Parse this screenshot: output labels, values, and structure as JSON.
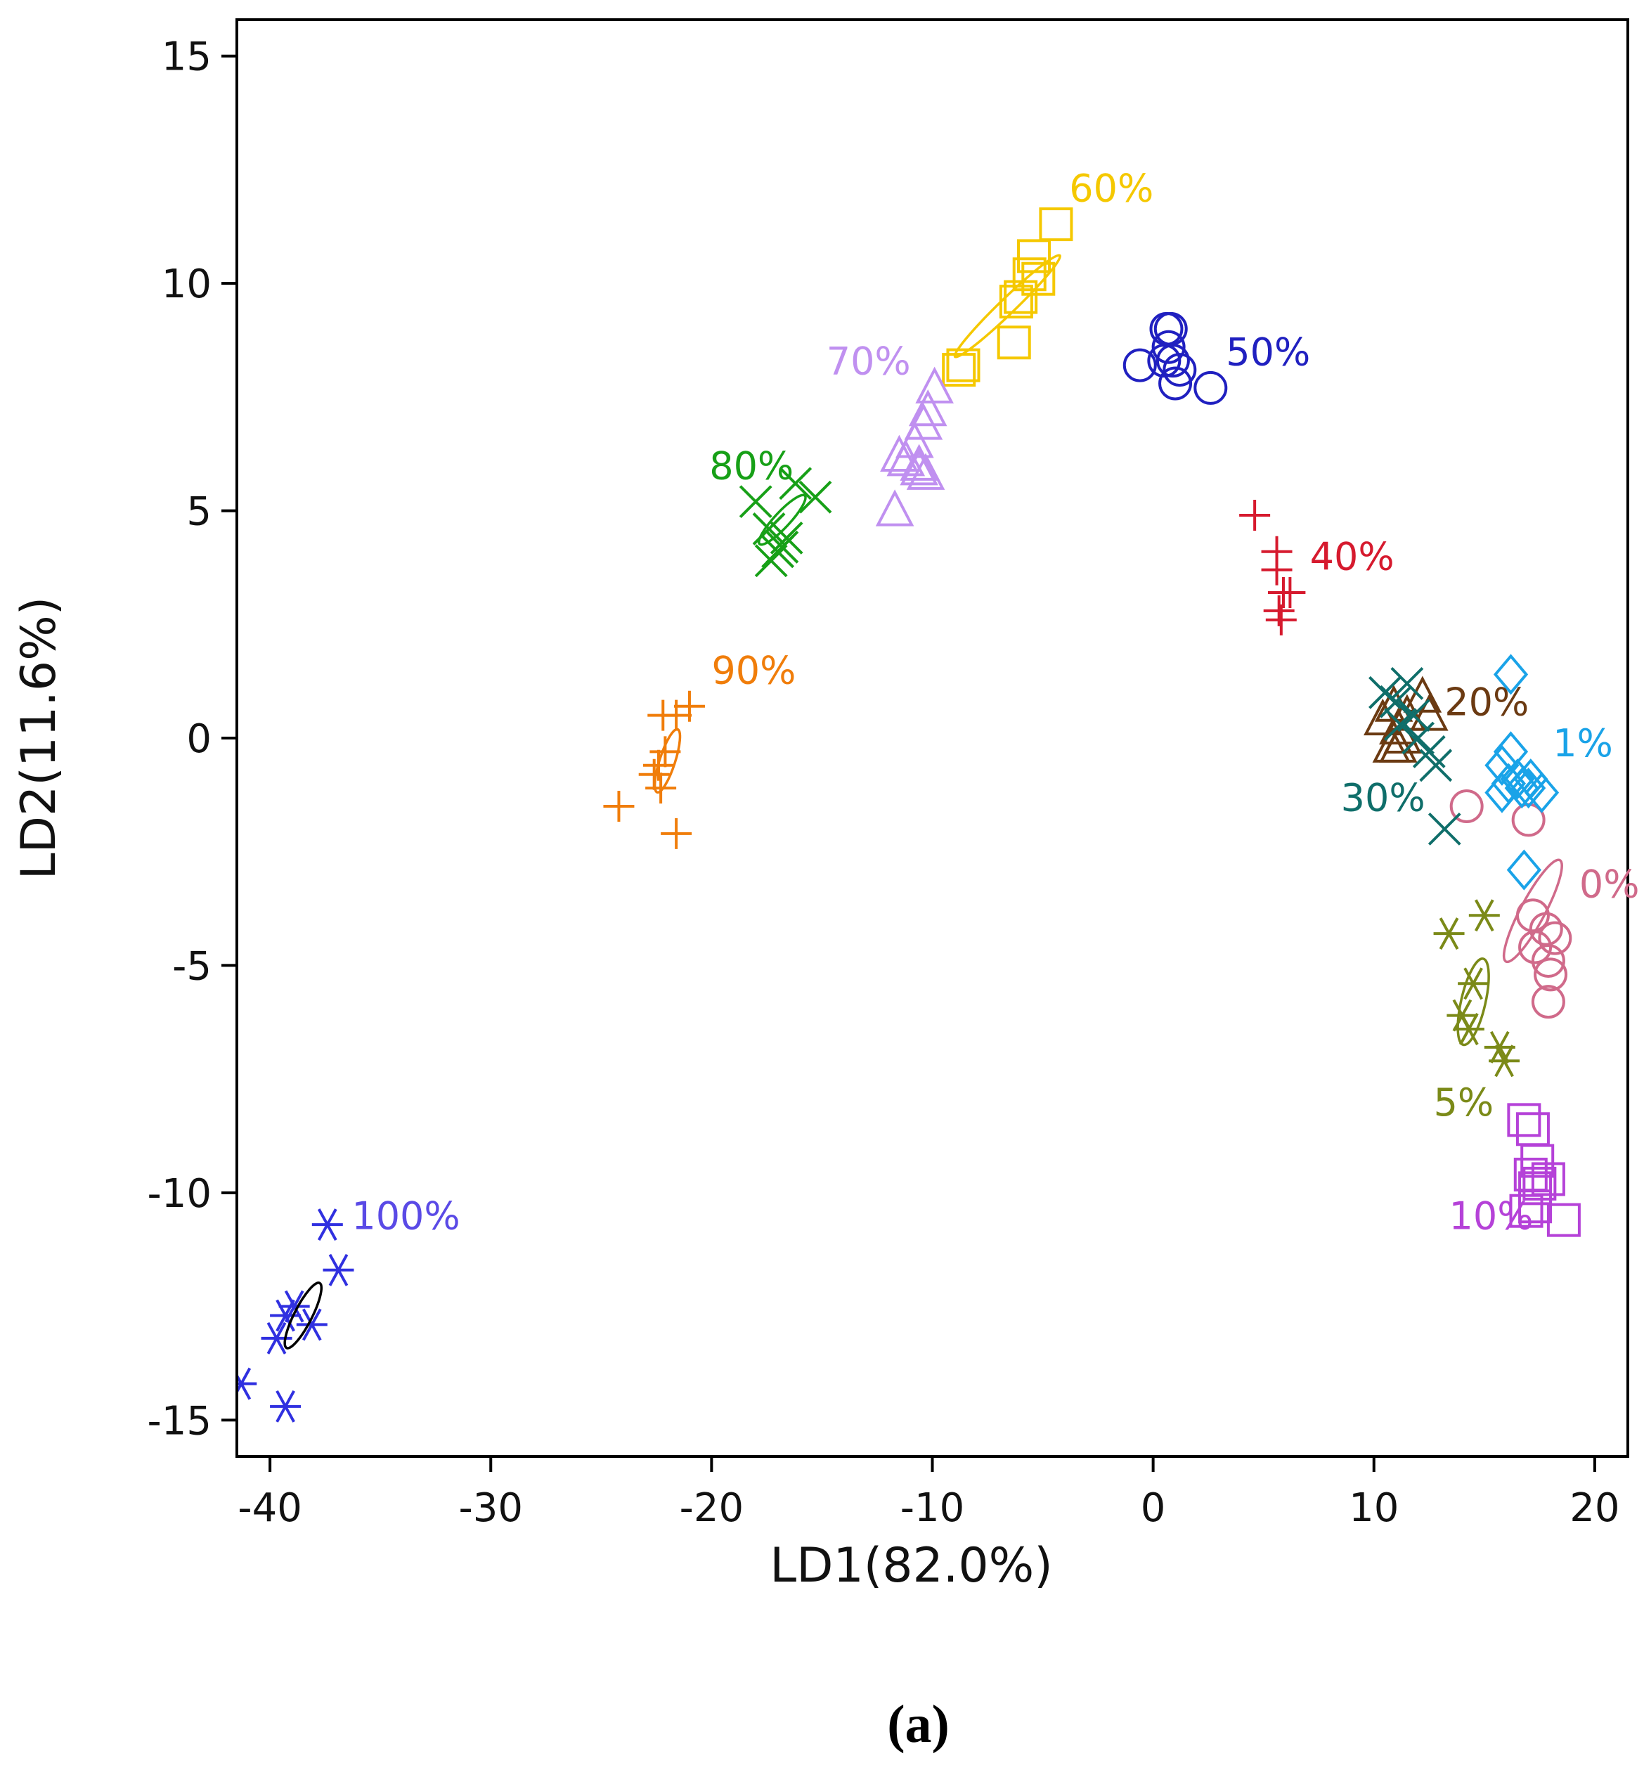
{
  "chart_data": {
    "type": "scatter",
    "title": "",
    "xlabel": "LD1(82.0%)",
    "ylabel": "LD2(11.6%)",
    "xlim": [
      -41.5,
      21.5
    ],
    "ylim": [
      -15.8,
      15.8
    ],
    "x_ticks": [
      -40,
      -30,
      -20,
      -10,
      0,
      10,
      20
    ],
    "y_ticks": [
      15,
      10,
      5,
      0,
      -5,
      -10,
      -15
    ],
    "x_tick_labels": [
      "-40",
      "-30",
      "-20",
      "-10",
      "0",
      "10",
      "20"
    ],
    "y_tick_labels": [
      "15",
      "10",
      "5",
      "0",
      "-5",
      "-10",
      "-15"
    ],
    "grid": false,
    "legend": "none",
    "panel_label": "(a)",
    "series": [
      {
        "name": "0%",
        "color": "#d06a8a",
        "marker": "circle",
        "label_pos": [
          19.3,
          -3.5
        ],
        "ellipse": {
          "cx": 17.2,
          "cy": -3.8,
          "rx": 2.6,
          "ry": 0.55,
          "angle_deg": 62
        },
        "points": [
          [
            14.2,
            -1.5
          ],
          [
            17.0,
            -1.8
          ],
          [
            17.2,
            -3.9
          ],
          [
            17.8,
            -4.2
          ],
          [
            18.2,
            -4.4
          ],
          [
            17.3,
            -4.6
          ],
          [
            17.9,
            -4.9
          ],
          [
            18.0,
            -5.2
          ],
          [
            17.9,
            -5.8
          ]
        ]
      },
      {
        "name": "1%",
        "color": "#1aa3e8",
        "marker": "diamond",
        "label_pos": [
          18.1,
          -0.4
        ],
        "points": [
          [
            16.2,
            1.4
          ],
          [
            16.2,
            -0.3
          ],
          [
            15.8,
            -0.6
          ],
          [
            16.5,
            -0.9
          ],
          [
            16.1,
            -1.0
          ],
          [
            15.8,
            -1.2
          ],
          [
            16.7,
            -1.1
          ],
          [
            17.1,
            -0.9
          ],
          [
            17.0,
            -1.1
          ],
          [
            17.6,
            -1.2
          ],
          [
            16.8,
            -2.9
          ]
        ]
      },
      {
        "name": "5%",
        "color": "#7b8a18",
        "marker": "asterisk",
        "label_pos": [
          12.7,
          -8.3
        ],
        "ellipse": {
          "cx": 14.5,
          "cy": -5.8,
          "rx": 2.0,
          "ry": 0.55,
          "angle_deg": 77
        },
        "points": [
          [
            13.4,
            -4.3
          ],
          [
            15.0,
            -3.9
          ],
          [
            14.5,
            -5.4
          ],
          [
            14.0,
            -6.1
          ],
          [
            14.3,
            -6.4
          ],
          [
            15.7,
            -6.8
          ],
          [
            15.9,
            -7.1
          ]
        ]
      },
      {
        "name": "10%",
        "color": "#b542d8",
        "marker": "square",
        "label_pos": [
          13.4,
          -10.8
        ],
        "points": [
          [
            16.8,
            -8.4
          ],
          [
            17.2,
            -8.6
          ],
          [
            17.4,
            -9.3
          ],
          [
            17.1,
            -9.6
          ],
          [
            17.5,
            -9.8
          ],
          [
            17.3,
            -9.9
          ],
          [
            17.9,
            -9.7
          ],
          [
            17.3,
            -10.3
          ],
          [
            16.9,
            -10.4
          ],
          [
            18.6,
            -10.6
          ]
        ]
      },
      {
        "name": "20%",
        "color": "#6b3a12",
        "marker": "triangle",
        "label_pos": [
          13.2,
          0.5
        ],
        "points": [
          [
            10.4,
            0.4
          ],
          [
            10.9,
            0.7
          ],
          [
            11.1,
            0.2
          ],
          [
            11.5,
            0.5
          ],
          [
            12.2,
            0.9
          ],
          [
            12.5,
            0.5
          ],
          [
            11.3,
            0.0
          ],
          [
            10.8,
            -0.2
          ],
          [
            11.1,
            -0.2
          ]
        ]
      },
      {
        "name": "30%",
        "color": "#0f6e6a",
        "marker": "x",
        "label_pos": [
          8.5,
          -1.6
        ],
        "points": [
          [
            10.5,
            1.0
          ],
          [
            11.5,
            1.2
          ],
          [
            11.0,
            0.8
          ],
          [
            11.8,
            0.5
          ],
          [
            11.2,
            0.3
          ],
          [
            12.0,
            0.0
          ],
          [
            12.5,
            -0.3
          ],
          [
            12.8,
            -0.6
          ],
          [
            13.2,
            -2.0
          ]
        ]
      },
      {
        "name": "40%",
        "color": "#d61a2e",
        "marker": "plus",
        "label_pos": [
          7.1,
          3.7
        ],
        "points": [
          [
            4.6,
            4.9
          ],
          [
            5.6,
            4.1
          ],
          [
            5.6,
            3.7
          ],
          [
            5.9,
            3.2
          ],
          [
            6.2,
            3.2
          ],
          [
            5.7,
            2.8
          ],
          [
            5.8,
            2.6
          ]
        ]
      },
      {
        "name": "50%",
        "color": "#2020c0",
        "marker": "circle",
        "label_pos": [
          3.3,
          8.2
        ],
        "points": [
          [
            0.6,
            9.0
          ],
          [
            0.8,
            9.0
          ],
          [
            0.7,
            8.6
          ],
          [
            0.5,
            8.3
          ],
          [
            0.9,
            8.3
          ],
          [
            1.2,
            8.1
          ],
          [
            -0.6,
            8.2
          ],
          [
            1.0,
            7.8
          ],
          [
            2.6,
            7.7
          ]
        ]
      },
      {
        "name": "60%",
        "color": "#f5c800",
        "marker": "square",
        "label_pos": [
          -3.8,
          11.8
        ],
        "ellipse": {
          "cx": -6.6,
          "cy": 9.5,
          "rx": 3.3,
          "ry": 0.35,
          "angle_deg": 44
        },
        "points": [
          [
            -4.4,
            11.3
          ],
          [
            -5.4,
            10.6
          ],
          [
            -5.6,
            10.2
          ],
          [
            -5.2,
            10.1
          ],
          [
            -6.0,
            9.7
          ],
          [
            -6.2,
            9.6
          ],
          [
            -6.3,
            8.7
          ],
          [
            -8.6,
            8.2
          ],
          [
            -8.8,
            8.1
          ]
        ]
      },
      {
        "name": "70%",
        "color": "#c090f0",
        "marker": "triangle",
        "label_pos": [
          -14.8,
          8.0
        ],
        "points": [
          [
            -9.9,
            7.7
          ],
          [
            -10.2,
            7.2
          ],
          [
            -10.4,
            6.9
          ],
          [
            -10.8,
            6.5
          ],
          [
            -11.5,
            6.2
          ],
          [
            -10.6,
            6.0
          ],
          [
            -11.2,
            6.1
          ],
          [
            -10.3,
            5.8
          ],
          [
            -10.6,
            5.9
          ],
          [
            -11.7,
            5.0
          ]
        ]
      },
      {
        "name": "80%",
        "color": "#17a017",
        "marker": "x",
        "label_pos": [
          -20.1,
          5.7
        ],
        "ellipse": {
          "cx": -16.8,
          "cy": 4.8,
          "rx": 1.5,
          "ry": 0.35,
          "angle_deg": 47
        },
        "points": [
          [
            -18.0,
            5.2
          ],
          [
            -16.2,
            5.6
          ],
          [
            -15.3,
            5.3
          ],
          [
            -17.4,
            4.6
          ],
          [
            -16.6,
            4.4
          ],
          [
            -17.0,
            4.1
          ],
          [
            -17.3,
            3.9
          ],
          [
            -16.8,
            4.2
          ]
        ]
      },
      {
        "name": "90%",
        "color": "#f07d0a",
        "marker": "plus",
        "label_pos": [
          -20.0,
          1.2
        ],
        "ellipse": {
          "cx": -22.0,
          "cy": -0.5,
          "rx": 1.5,
          "ry": 0.35,
          "angle_deg": 72
        },
        "points": [
          [
            -21.0,
            0.7
          ],
          [
            -22.2,
            0.5
          ],
          [
            -21.6,
            0.5
          ],
          [
            -22.1,
            -0.3
          ],
          [
            -22.4,
            -0.6
          ],
          [
            -22.6,
            -0.8
          ],
          [
            -22.3,
            -1.1
          ],
          [
            -24.2,
            -1.5
          ],
          [
            -21.6,
            -2.1
          ]
        ]
      },
      {
        "name": "100%",
        "color": "#3030e0",
        "marker": "asterisk",
        "label_pos": [
          -36.3,
          -10.8
        ],
        "label_color": "#5a4ae6",
        "ellipse": {
          "cx": -38.5,
          "cy": -12.7,
          "rx": 1.65,
          "ry": 0.4,
          "angle_deg": 63
        },
        "points": [
          [
            -37.4,
            -10.7
          ],
          [
            -36.9,
            -11.7
          ],
          [
            -38.9,
            -12.5
          ],
          [
            -39.3,
            -12.7
          ],
          [
            -38.1,
            -12.9
          ],
          [
            -39.7,
            -13.2
          ],
          [
            -39.3,
            -14.7
          ],
          [
            -41.3,
            -14.2
          ]
        ]
      }
    ]
  }
}
